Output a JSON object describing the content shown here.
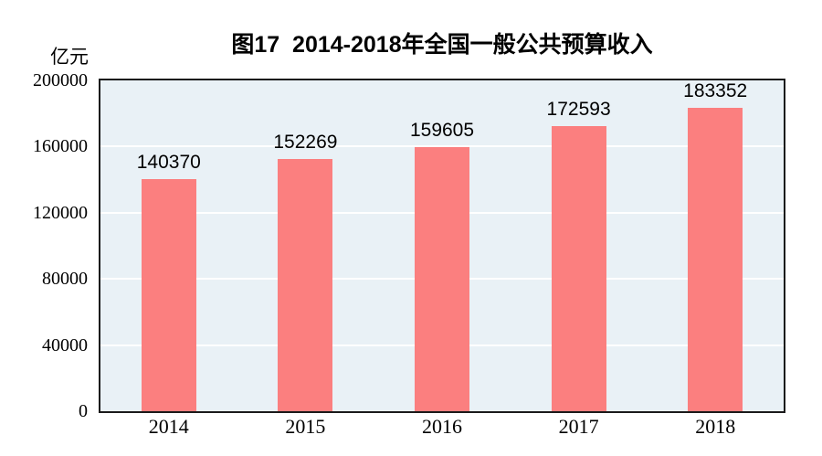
{
  "chart_data": {
    "type": "bar",
    "title": "图17  2014-2018年全国一般公共预算收入",
    "ylabel": "亿元",
    "xlabel": "",
    "categories": [
      "2014",
      "2015",
      "2016",
      "2017",
      "2018"
    ],
    "values": [
      140370,
      152269,
      159605,
      172593,
      183352
    ],
    "ylim": [
      0,
      200000
    ],
    "ytick_step": 40000,
    "ytick_labels": [
      "0",
      "40000",
      "80000",
      "120000",
      "160000",
      "200000"
    ],
    "grid": "horizontal",
    "legend_position": "none",
    "colors": {
      "bar_fill": "#fb7f7f",
      "plot_background": "#e9f1f6",
      "gridline": "#ffffff",
      "plot_border": "#1a1a1a",
      "text": "#000000"
    }
  }
}
